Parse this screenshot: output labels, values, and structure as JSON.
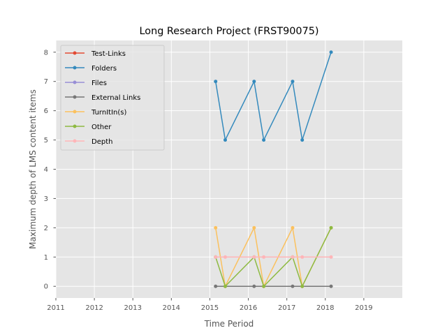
{
  "chart_data": {
    "type": "line",
    "title": "Long Research Project (FRST90075)",
    "xlabel": "Time Period",
    "ylabel": "Maximum depth of LMS content items",
    "xlim": [
      2011,
      2020
    ],
    "ylim": [
      -0.4,
      8.4
    ],
    "xticks": [
      "2011",
      "2012",
      "2013",
      "2014",
      "2015",
      "2016",
      "2017",
      "2018",
      "2019"
    ],
    "yticks": [
      "0",
      "1",
      "2",
      "3",
      "4",
      "5",
      "6",
      "7",
      "8"
    ],
    "grid": true,
    "legend_position": "upper-left",
    "x": [
      2015.15,
      2015.4,
      2016.15,
      2016.4,
      2017.15,
      2017.4,
      2018.15
    ],
    "series": [
      {
        "name": "Test-Links",
        "color": "#E24A33",
        "values": [
          null,
          null,
          null,
          null,
          null,
          null,
          null
        ]
      },
      {
        "name": "Folders",
        "color": "#348ABD",
        "values": [
          7,
          5,
          7,
          5,
          7,
          5,
          8
        ]
      },
      {
        "name": "Files",
        "color": "#988ED5",
        "values": [
          null,
          null,
          null,
          null,
          null,
          null,
          null
        ]
      },
      {
        "name": "External Links",
        "color": "#777777",
        "values": [
          0,
          0,
          0,
          0,
          0,
          0,
          0
        ]
      },
      {
        "name": "TurnItIn(s)",
        "color": "#FBC15E",
        "values": [
          2,
          0,
          2,
          0,
          2,
          0,
          2
        ]
      },
      {
        "name": "Other",
        "color": "#8EBA42",
        "values": [
          1,
          0,
          1,
          0,
          1,
          0,
          2
        ]
      },
      {
        "name": "Depth",
        "color": "#FFB5B8",
        "values": [
          1,
          1,
          1,
          1,
          1,
          1,
          1
        ]
      }
    ]
  }
}
